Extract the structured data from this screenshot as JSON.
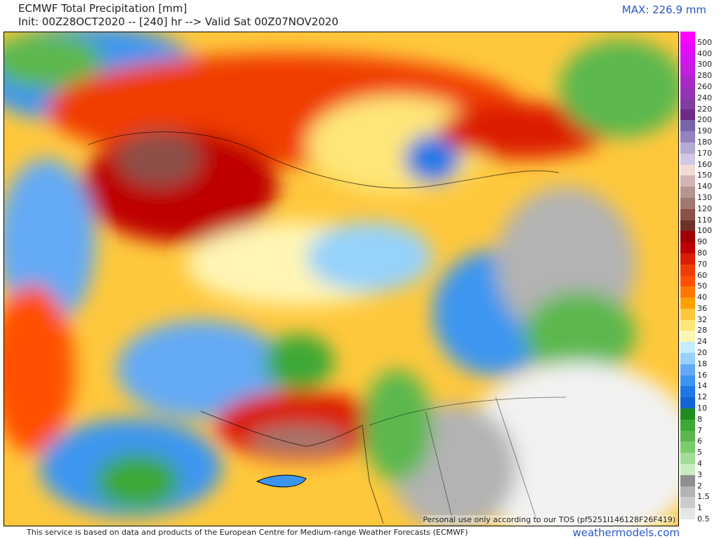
{
  "header": {
    "title": "ECMWF Total Precipitation [mm]",
    "init": "Init: 00Z28OCT2020 -- [240] hr --> Valid Sat 00Z07NOV2020",
    "max": "MAX: 226.9 mm"
  },
  "legend": [
    {
      "label": "500",
      "color": "#ff00ff"
    },
    {
      "label": "400",
      "color": "#e60afa"
    },
    {
      "label": "300",
      "color": "#d214f0"
    },
    {
      "label": "280",
      "color": "#c31edc"
    },
    {
      "label": "260",
      "color": "#aa28c8"
    },
    {
      "label": "240",
      "color": "#9632b4"
    },
    {
      "label": "220",
      "color": "#823ca0"
    },
    {
      "label": "200",
      "color": "#6e2a82"
    },
    {
      "label": "190",
      "color": "#7864aa"
    },
    {
      "label": "180",
      "color": "#9682be"
    },
    {
      "label": "170",
      "color": "#b4aad2"
    },
    {
      "label": "160",
      "color": "#d2c8e6"
    },
    {
      "label": "150",
      "color": "#f0dcd2"
    },
    {
      "label": "140",
      "color": "#d2b4b4"
    },
    {
      "label": "130",
      "color": "#b49690"
    },
    {
      "label": "120",
      "color": "#a0786e"
    },
    {
      "label": "110",
      "color": "#8c5046"
    },
    {
      "label": "100",
      "color": "#6e3228"
    },
    {
      "label": "90",
      "color": "#a00000"
    },
    {
      "label": "80",
      "color": "#be0000"
    },
    {
      "label": "70",
      "color": "#dc1e00"
    },
    {
      "label": "60",
      "color": "#f03c00"
    },
    {
      "label": "50",
      "color": "#ff5000"
    },
    {
      "label": "40",
      "color": "#ff7800"
    },
    {
      "label": "36",
      "color": "#ffa000"
    },
    {
      "label": "32",
      "color": "#ffc83c"
    },
    {
      "label": "28",
      "color": "#ffe678"
    },
    {
      "label": "24",
      "color": "#fff5b4"
    },
    {
      "label": "20",
      "color": "#c8ebff"
    },
    {
      "label": "18",
      "color": "#96d2fa"
    },
    {
      "label": "16",
      "color": "#64aaf5"
    },
    {
      "label": "14",
      "color": "#3c96f0"
    },
    {
      "label": "12",
      "color": "#1e78e6"
    },
    {
      "label": "10",
      "color": "#1464d2"
    },
    {
      "label": "8",
      "color": "#1e8c1e"
    },
    {
      "label": "7",
      "color": "#3ea836"
    },
    {
      "label": "6",
      "color": "#5cb84e"
    },
    {
      "label": "5",
      "color": "#7ecb6e"
    },
    {
      "label": "4",
      "color": "#a2dc96"
    },
    {
      "label": "3",
      "color": "#c6ecc0"
    },
    {
      "label": "2",
      "color": "#8f8f8f"
    },
    {
      "label": "1.5",
      "color": "#b3b3b3"
    },
    {
      "label": "1",
      "color": "#cccccc"
    },
    {
      "label": "0.5",
      "color": "#e6e6e6"
    }
  ],
  "map": {
    "notice": "Personal use only according to our TOS (pf5251I146128F26F419)"
  },
  "footer": {
    "credit": "This service is based on data and products of the European Centre for Medium-range Weather Forecasts (ECMWF)",
    "site": "weathermodels.com"
  }
}
